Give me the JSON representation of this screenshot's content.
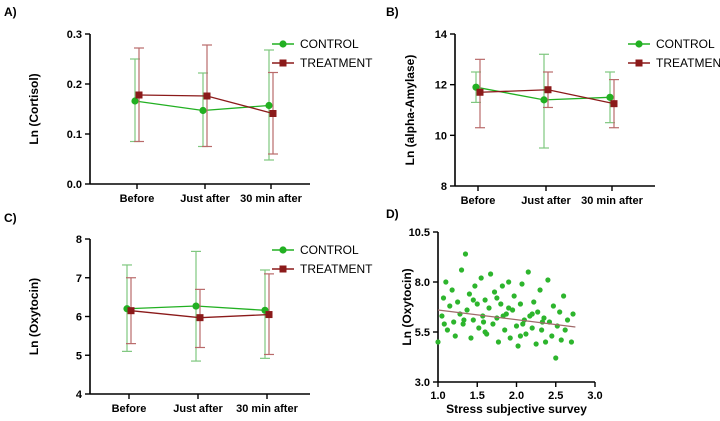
{
  "colors": {
    "control": "#22b022",
    "control_bar": "#7fc77f",
    "treatment": "#8b1a1a",
    "treatment_bar": "#b96a6a",
    "axis": "#000000",
    "scatter": "#2db52d",
    "trend": "#a06a6a"
  },
  "chart_data": [
    {
      "panel_label": "A)",
      "type": "line",
      "ylabel": "Ln (Cortisol)",
      "xlabel": "",
      "categories": [
        "Before",
        "Just after",
        "30 min after"
      ],
      "ylim": [
        0.0,
        0.3
      ],
      "yticks": [
        0.0,
        0.1,
        0.2,
        0.3
      ],
      "ytick_labels": [
        "0.0",
        "0.1",
        "0.2",
        "0.3"
      ],
      "legend": "top-right",
      "series": [
        {
          "name": "CONTROL",
          "values": [
            0.166,
            0.147,
            0.157
          ],
          "err_low": [
            0.085,
            0.075,
            0.048
          ],
          "err_high": [
            0.25,
            0.222,
            0.268
          ]
        },
        {
          "name": "TREATMENT",
          "values": [
            0.178,
            0.176,
            0.141
          ],
          "err_low": [
            0.085,
            0.075,
            0.06
          ],
          "err_high": [
            0.272,
            0.278,
            0.223
          ]
        }
      ]
    },
    {
      "panel_label": "B)",
      "type": "line",
      "ylabel": "Ln (alpha-Amylase)",
      "xlabel": "",
      "categories": [
        "Before",
        "Just after",
        "30 min after"
      ],
      "ylim": [
        8,
        14
      ],
      "yticks": [
        8,
        10,
        12,
        14
      ],
      "ytick_labels": [
        "8",
        "10",
        "12",
        "14"
      ],
      "legend": "top-right",
      "series": [
        {
          "name": "CONTROL",
          "values": [
            11.9,
            11.4,
            11.5
          ],
          "err_low": [
            11.3,
            9.5,
            10.5
          ],
          "err_high": [
            12.5,
            13.2,
            12.5
          ]
        },
        {
          "name": "TREATMENT",
          "values": [
            11.7,
            11.8,
            11.25
          ],
          "err_low": [
            10.3,
            11.1,
            10.3
          ],
          "err_high": [
            13.0,
            12.5,
            12.2
          ]
        }
      ]
    },
    {
      "panel_label": "C)",
      "type": "line",
      "ylabel": "Ln (Oxytocin)",
      "xlabel": "",
      "categories": [
        "Before",
        "Just after",
        "30 min after"
      ],
      "ylim": [
        4,
        8
      ],
      "yticks": [
        4,
        5,
        6,
        7,
        8
      ],
      "ytick_labels": [
        "4",
        "5",
        "6",
        "7",
        "8"
      ],
      "legend": "top-right",
      "series": [
        {
          "name": "CONTROL",
          "values": [
            6.2,
            6.27,
            6.16
          ],
          "err_low": [
            5.1,
            4.85,
            4.92
          ],
          "err_high": [
            7.33,
            7.68,
            7.2
          ]
        },
        {
          "name": "TREATMENT",
          "values": [
            6.15,
            5.97,
            6.05
          ],
          "err_low": [
            5.3,
            5.2,
            5.02
          ],
          "err_high": [
            7.0,
            6.7,
            7.1
          ]
        }
      ]
    },
    {
      "panel_label": "D)",
      "type": "scatter",
      "ylabel": "Ln (Oxytocin)",
      "xlabel": "Stress subjective survey",
      "xlim": [
        1.0,
        3.0
      ],
      "ylim": [
        3.0,
        10.5
      ],
      "xticks": [
        1.0,
        1.5,
        2.0,
        2.5,
        3.0
      ],
      "xtick_labels": [
        "1.0",
        "1.5",
        "2.0",
        "2.5",
        "3.0"
      ],
      "yticks": [
        3.0,
        5.5,
        8.0,
        10.5
      ],
      "ytick_labels": [
        "3.0",
        "5.5",
        "8.0",
        "10.5"
      ],
      "trend_line": {
        "x": [
          1.0,
          2.75
        ],
        "y": [
          6.6,
          5.75
        ]
      },
      "points": [
        [
          1.0,
          5.0
        ],
        [
          1.05,
          6.3
        ],
        [
          1.07,
          7.2
        ],
        [
          1.1,
          8.0
        ],
        [
          1.12,
          5.6
        ],
        [
          1.15,
          6.8
        ],
        [
          1.18,
          7.6
        ],
        [
          1.2,
          6.0
        ],
        [
          1.22,
          5.3
        ],
        [
          1.25,
          7.0
        ],
        [
          1.28,
          6.4
        ],
        [
          1.3,
          8.6
        ],
        [
          1.32,
          5.9
        ],
        [
          1.35,
          9.4
        ],
        [
          1.37,
          6.6
        ],
        [
          1.4,
          7.4
        ],
        [
          1.42,
          5.2
        ],
        [
          1.45,
          6.1
        ],
        [
          1.47,
          7.8
        ],
        [
          1.5,
          6.9
        ],
        [
          1.52,
          5.7
        ],
        [
          1.55,
          8.2
        ],
        [
          1.57,
          6.3
        ],
        [
          1.6,
          7.1
        ],
        [
          1.62,
          5.4
        ],
        [
          1.65,
          6.7
        ],
        [
          1.67,
          8.4
        ],
        [
          1.7,
          5.9
        ],
        [
          1.72,
          7.5
        ],
        [
          1.75,
          6.2
        ],
        [
          1.77,
          5.0
        ],
        [
          1.8,
          6.9
        ],
        [
          1.82,
          7.8
        ],
        [
          1.85,
          5.6
        ],
        [
          1.87,
          6.4
        ],
        [
          1.9,
          8.0
        ],
        [
          1.92,
          5.2
        ],
        [
          1.95,
          6.6
        ],
        [
          1.97,
          7.3
        ],
        [
          2.0,
          5.8
        ],
        [
          2.02,
          4.8
        ],
        [
          2.05,
          6.9
        ],
        [
          2.07,
          7.9
        ],
        [
          2.1,
          6.1
        ],
        [
          2.12,
          5.4
        ],
        [
          2.15,
          8.5
        ],
        [
          2.17,
          6.3
        ],
        [
          2.2,
          5.7
        ],
        [
          2.22,
          7.0
        ],
        [
          2.25,
          4.9
        ],
        [
          2.27,
          6.5
        ],
        [
          2.3,
          7.6
        ],
        [
          2.32,
          5.6
        ],
        [
          2.35,
          6.2
        ],
        [
          2.37,
          5.0
        ],
        [
          2.4,
          8.1
        ],
        [
          2.42,
          6.0
        ],
        [
          2.45,
          5.3
        ],
        [
          2.47,
          6.8
        ],
        [
          2.5,
          4.2
        ],
        [
          2.52,
          5.8
        ],
        [
          2.55,
          6.5
        ],
        [
          2.57,
          5.1
        ],
        [
          2.6,
          7.3
        ],
        [
          2.62,
          5.6
        ],
        [
          2.65,
          6.1
        ],
        [
          2.7,
          5.0
        ],
        [
          2.72,
          6.4
        ],
        [
          1.08,
          5.9
        ],
        [
          1.33,
          6.1
        ],
        [
          1.58,
          6.0
        ],
        [
          1.83,
          6.3
        ],
        [
          2.08,
          5.9
        ],
        [
          2.33,
          6.0
        ],
        [
          1.6,
          5.5
        ],
        [
          1.9,
          6.7
        ],
        [
          2.2,
          6.4
        ],
        [
          1.45,
          7.1
        ],
        [
          1.75,
          7.2
        ],
        [
          2.05,
          5.3
        ]
      ]
    }
  ]
}
